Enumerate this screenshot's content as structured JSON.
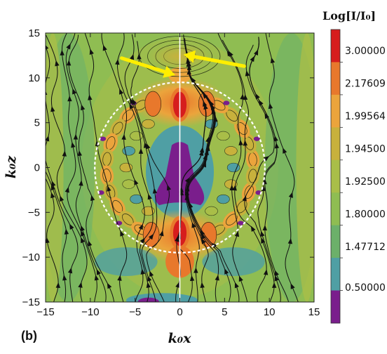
{
  "chart_data": {
    "type": "heatmap",
    "title": "",
    "panel_label": "(b)",
    "xlabel": "k₀x",
    "ylabel": "k₀z",
    "xlim": [
      -15,
      15
    ],
    "ylim": [
      -15,
      15
    ],
    "x_ticks": [
      -15,
      -10,
      -5,
      0,
      5,
      10,
      15
    ],
    "y_ticks": [
      -15,
      -10,
      -5,
      0,
      5,
      10,
      15
    ],
    "x_tick_labels": [
      "−15",
      "−10",
      "−5",
      "0",
      "5",
      "10",
      "15"
    ],
    "y_tick_labels": [
      "−15",
      "−10",
      "−5",
      "0",
      "5",
      "10",
      "15"
    ],
    "colorbar": {
      "title": "Log[I/I₀]",
      "labels": [
        "3.00000",
        "2.17609",
        "1.99564",
        "1.94500",
        "1.92500",
        "1.80000",
        "1.47712",
        "0.50000"
      ],
      "colors": [
        "#d61d1d",
        "#e8782c",
        "#eba43c",
        "#c8b13c",
        "#a9be48",
        "#8fbd52",
        "#6cb06a",
        "#4f9fa4",
        "#7a1e8c"
      ]
    },
    "circle": {
      "center": [
        0,
        0
      ],
      "radius": 9.5,
      "style": "white dashed"
    },
    "arrows": [
      {
        "from": [
          -6.5,
          12.2
        ],
        "to": [
          -0.5,
          10.3
        ],
        "color": "#ffee00"
      },
      {
        "from": [
          7.2,
          11.3
        ],
        "to": [
          0.4,
          12.6
        ],
        "color": "#ffee00"
      }
    ],
    "hot_spots": [
      {
        "x": 0,
        "y": 7.0,
        "level": "red"
      },
      {
        "x": 0,
        "y": -7.3,
        "level": "red"
      }
    ]
  }
}
